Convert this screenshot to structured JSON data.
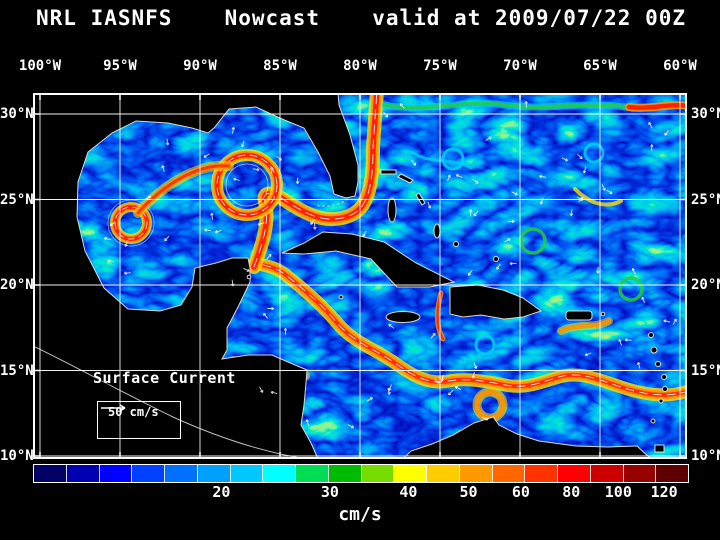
{
  "title": {
    "model": "NRL IASNFS",
    "product": "Nowcast",
    "valid": "valid at 2009/07/22 00Z"
  },
  "axes": {
    "lon": [
      "100°W",
      "95°W",
      "90°W",
      "85°W",
      "80°W",
      "75°W",
      "70°W",
      "65°W",
      "60°W"
    ],
    "lat": [
      "30°N",
      "25°N",
      "20°N",
      "15°N",
      "10°N"
    ]
  },
  "map_annotation": {
    "label": "Surface Current",
    "scale": "50 cm/s"
  },
  "colorbar": {
    "unit": "cm/s",
    "ticks": [
      {
        "label": "20",
        "pos": 28.8
      },
      {
        "label": "30",
        "pos": 45.4
      },
      {
        "label": "40",
        "pos": 57.4
      },
      {
        "label": "50",
        "pos": 66.6
      },
      {
        "label": "60",
        "pos": 74.6
      },
      {
        "label": "80",
        "pos": 82.3
      },
      {
        "label": "100",
        "pos": 89.5
      },
      {
        "label": "120",
        "pos": 96.5
      }
    ],
    "colors": [
      "#000066",
      "#0000b3",
      "#0000ff",
      "#0040ff",
      "#0070ff",
      "#00a0ff",
      "#00c8ff",
      "#00ffff",
      "#00dd55",
      "#00bb00",
      "#77dd00",
      "#ffff00",
      "#ffcc00",
      "#ff9900",
      "#ff6600",
      "#ff3300",
      "#ff0000",
      "#cc0000",
      "#950000",
      "#5e0000"
    ]
  },
  "theme": {
    "background": "#000000",
    "text": "#ffffff",
    "ocean_base": "#001233",
    "grid": "#ffffff",
    "current_core": "#ff2200",
    "current_mid": "#ff9100",
    "current_edge": "#ffe000"
  }
}
